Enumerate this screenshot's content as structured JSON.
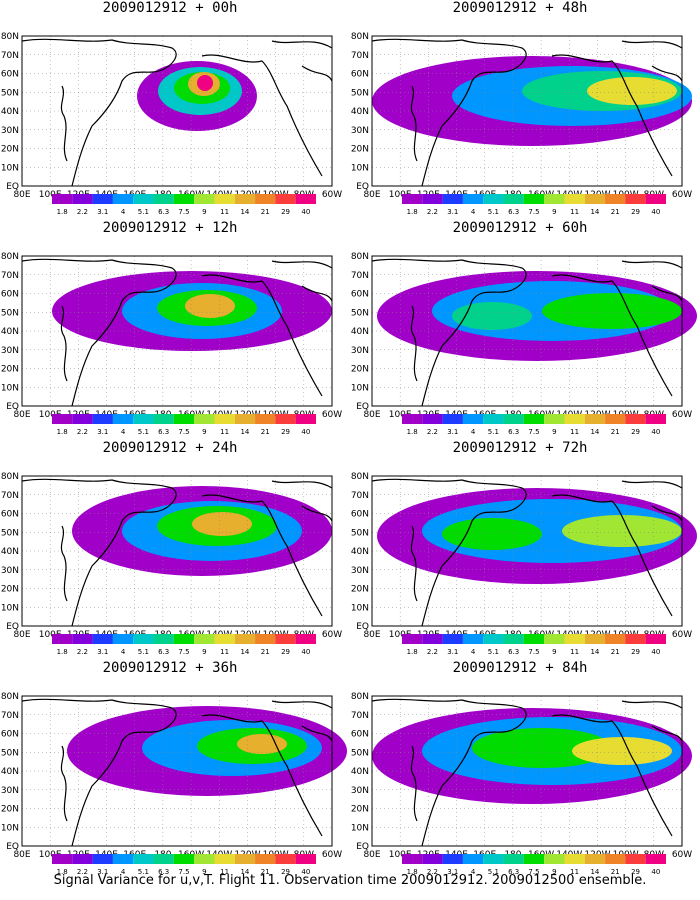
{
  "panels": [
    {
      "title": "2009012912 + 00h"
    },
    {
      "title": "2009012912 + 48h"
    },
    {
      "title": "2009012912 + 12h"
    },
    {
      "title": "2009012912 + 60h"
    },
    {
      "title": "2009012912 + 24h"
    },
    {
      "title": "2009012912 + 72h"
    },
    {
      "title": "2009012912 + 36h"
    },
    {
      "title": "2009012912 + 84h"
    }
  ],
  "axis": {
    "lat_labels": [
      "80N",
      "70N",
      "60N",
      "50N",
      "40N",
      "30N",
      "20N",
      "10N",
      "EQ"
    ],
    "lon_labels": [
      "80E",
      "100E",
      "120E",
      "140E",
      "160E",
      "180",
      "160W",
      "140W",
      "120W",
      "100W",
      "80W",
      "60W"
    ]
  },
  "colorbar": {
    "labels": [
      "1.8",
      "2.2",
      "3.1",
      "4",
      "5.1",
      "6.3",
      "7.5",
      "9",
      "11",
      "14",
      "21",
      "29",
      "40"
    ],
    "colors": [
      "#a000c8",
      "#8200dc",
      "#1e3cff",
      "#0096ff",
      "#00c8c8",
      "#00d28c",
      "#00dc00",
      "#a0e632",
      "#e6dc32",
      "#e6af2d",
      "#f08228",
      "#fa3c3c",
      "#f00082"
    ]
  },
  "footer": "Signal Variance for u,v,T. Flight 11. Observation time 2009012912. 2009012500 ensemble."
}
